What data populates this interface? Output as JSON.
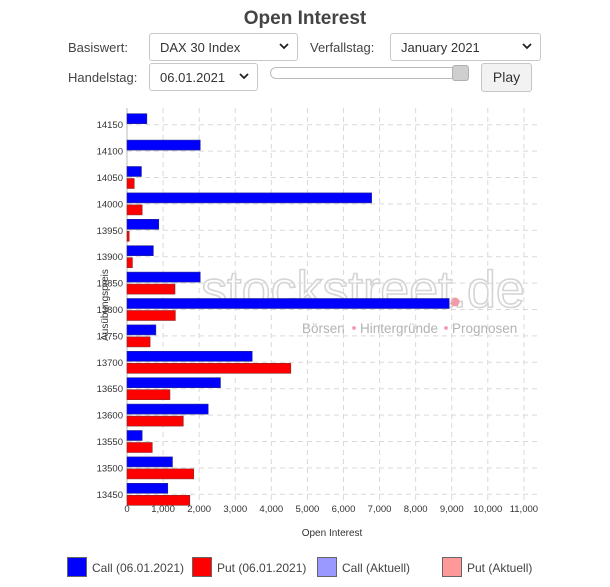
{
  "header": {
    "title": "Open Interest",
    "basiswert_label": "Basiswert:",
    "basiswert_value": "DAX 30 Index",
    "verfallstag_label": "Verfallstag:",
    "verfallstag_value": "January 2021",
    "handelstag_label": "Handelstag:",
    "handelstag_value": "06.01.2021",
    "play_label": "Play",
    "slider_position": 1.0
  },
  "watermark": {
    "brand": "stockstreet.de",
    "tagline_parts": [
      "Börsen",
      "Hintergründe",
      "Prognosen"
    ]
  },
  "legend": [
    {
      "label": "Call (06.01.2021)",
      "color": "#0000ff"
    },
    {
      "label": "Put (06.01.2021)",
      "color": "#ff0000"
    },
    {
      "label": "Call (Aktuell)",
      "color": "#9999ff"
    },
    {
      "label": "Put (Aktuell)",
      "color": "#ff9999"
    }
  ],
  "chart_data": {
    "type": "bar",
    "orientation": "horizontal",
    "xlabel": "Open Interest",
    "ylabel": "Ausübungspreis",
    "xlim": [
      0,
      11000
    ],
    "xticks": [
      "0",
      "1,000",
      "2,000",
      "3,000",
      "4,000",
      "5,000",
      "6,000",
      "7,000",
      "8,000",
      "9,000",
      "10,000",
      "11,000"
    ],
    "grid": true,
    "legend_position": "bottom",
    "categories": [
      "14150",
      "14100",
      "14050",
      "14000",
      "13950",
      "13900",
      "13850",
      "13800",
      "13750",
      "13700",
      "13650",
      "13600",
      "13550",
      "13500",
      "13450"
    ],
    "series": [
      {
        "name": "Call (06.01.2021)",
        "color": "#0000ff",
        "values": [
          550,
          2030,
          400,
          6780,
          880,
          730,
          2030,
          8930,
          800,
          3470,
          2590,
          2250,
          420,
          1260,
          1130
        ]
      },
      {
        "name": "Put (06.01.2021)",
        "color": "#ff0000",
        "values": [
          0,
          0,
          200,
          420,
          60,
          150,
          1330,
          1340,
          640,
          4540,
          1190,
          1560,
          700,
          1850,
          1740
        ]
      }
    ]
  }
}
